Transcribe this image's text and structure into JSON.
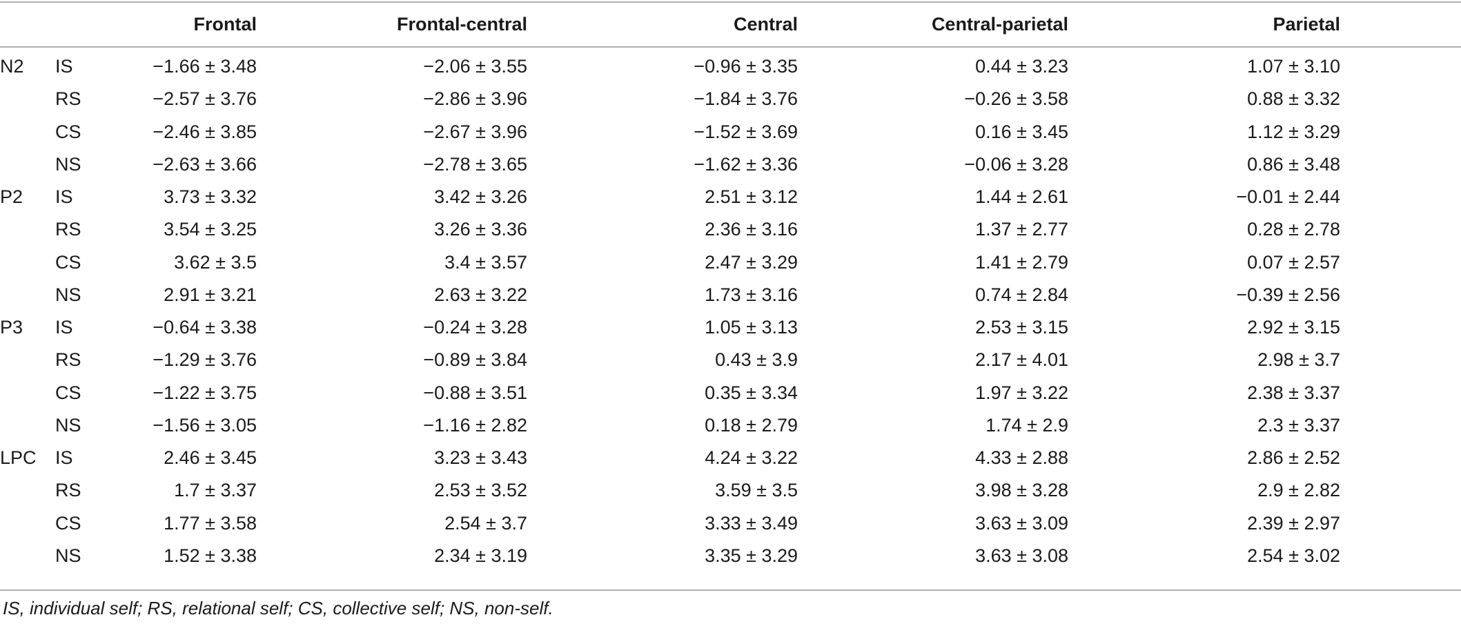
{
  "columns": [
    "Frontal",
    "Frontal-central",
    "Central",
    "Central-parietal",
    "Parietal"
  ],
  "groups": [
    {
      "label": "N2",
      "rows": [
        {
          "condition": "IS",
          "values": [
            "−1.66 ± 3.48",
            "−2.06 ± 3.55",
            "−0.96 ± 3.35",
            "0.44 ± 3.23",
            "1.07 ± 3.10"
          ]
        },
        {
          "condition": "RS",
          "values": [
            "−2.57 ± 3.76",
            "−2.86 ± 3.96",
            "−1.84 ± 3.76",
            "−0.26 ± 3.58",
            "0.88 ± 3.32"
          ]
        },
        {
          "condition": "CS",
          "values": [
            "−2.46 ± 3.85",
            "−2.67 ± 3.96",
            "−1.52 ± 3.69",
            "0.16 ± 3.45",
            "1.12 ± 3.29"
          ]
        },
        {
          "condition": "NS",
          "values": [
            "−2.63 ± 3.66",
            "−2.78 ± 3.65",
            "−1.62 ± 3.36",
            "−0.06 ± 3.28",
            "0.86 ± 3.48"
          ]
        }
      ]
    },
    {
      "label": "P2",
      "rows": [
        {
          "condition": "IS",
          "values": [
            "3.73 ± 3.32",
            "3.42 ± 3.26",
            "2.51 ± 3.12",
            "1.44 ± 2.61",
            "−0.01 ± 2.44"
          ]
        },
        {
          "condition": "RS",
          "values": [
            "3.54 ± 3.25",
            "3.26 ± 3.36",
            "2.36 ± 3.16",
            "1.37 ± 2.77",
            "0.28 ± 2.78"
          ]
        },
        {
          "condition": "CS",
          "values": [
            "3.62 ± 3.5",
            "3.4 ± 3.57",
            "2.47 ± 3.29",
            "1.41 ± 2.79",
            "0.07 ± 2.57"
          ]
        },
        {
          "condition": "NS",
          "values": [
            "2.91 ± 3.21",
            "2.63 ± 3.22",
            "1.73 ± 3.16",
            "0.74 ± 2.84",
            "−0.39 ± 2.56"
          ]
        }
      ]
    },
    {
      "label": "P3",
      "rows": [
        {
          "condition": "IS",
          "values": [
            "−0.64 ± 3.38",
            "−0.24 ± 3.28",
            "1.05 ± 3.13",
            "2.53 ± 3.15",
            "2.92 ± 3.15"
          ]
        },
        {
          "condition": "RS",
          "values": [
            "−1.29 ± 3.76",
            "−0.89 ± 3.84",
            "0.43 ± 3.9",
            "2.17 ± 4.01",
            "2.98 ± 3.7"
          ]
        },
        {
          "condition": "CS",
          "values": [
            "−1.22 ± 3.75",
            "−0.88 ± 3.51",
            "0.35 ± 3.34",
            "1.97 ± 3.22",
            "2.38 ± 3.37"
          ]
        },
        {
          "condition": "NS",
          "values": [
            "−1.56 ± 3.05",
            "−1.16 ± 2.82",
            "0.18 ± 2.79",
            "1.74 ± 2.9",
            "2.3 ± 3.37"
          ]
        }
      ]
    },
    {
      "label": "LPC",
      "rows": [
        {
          "condition": "IS",
          "values": [
            "2.46 ± 3.45",
            "3.23 ± 3.43",
            "4.24 ± 3.22",
            "4.33 ± 2.88",
            "2.86 ± 2.52"
          ]
        },
        {
          "condition": "RS",
          "values": [
            "1.7 ± 3.37",
            "2.53 ± 3.52",
            "3.59 ± 3.5",
            "3.98 ± 3.28",
            "2.9 ± 2.82"
          ]
        },
        {
          "condition": "CS",
          "values": [
            "1.77 ± 3.58",
            "2.54 ± 3.7",
            "3.33 ± 3.49",
            "3.63 ± 3.09",
            "2.39 ± 2.97"
          ]
        },
        {
          "condition": "NS",
          "values": [
            "1.52 ± 3.38",
            "2.34 ± 3.19",
            "3.35 ± 3.29",
            "3.63 ± 3.08",
            "2.54 ± 3.02"
          ]
        }
      ]
    }
  ],
  "footnote": "IS, individual self; RS, relational self; CS, collective self; NS, non-self."
}
